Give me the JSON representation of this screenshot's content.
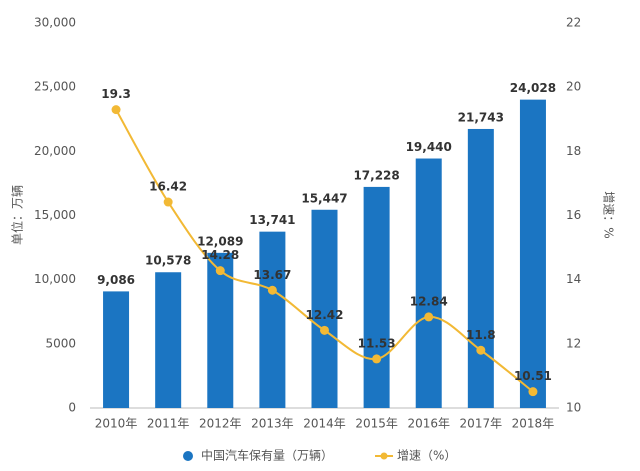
{
  "chart_data": {
    "type": "bar-line",
    "y_label": "单位：万辆",
    "y2_label": "增速：%",
    "categories": [
      "2010年",
      "2011年",
      "2012年",
      "2013年",
      "2014年",
      "2015年",
      "2016年",
      "2017年",
      "2018年"
    ],
    "series": [
      {
        "name": "中国汽车保有量（万辆）",
        "type": "bar",
        "color": "#1b75c2",
        "axis": "y",
        "values": [
          9086,
          10578,
          12089,
          13741,
          15447,
          17228,
          19440,
          21743,
          24028
        ],
        "value_labels": [
          "9,086",
          "10,578",
          "12,089",
          "13,741",
          "15,447",
          "17,228",
          "19,440",
          "21,743",
          "24,028"
        ]
      },
      {
        "name": "增速（%）",
        "type": "line",
        "color": "#f2b935",
        "axis": "y2",
        "values": [
          19.3,
          16.42,
          14.28,
          13.67,
          12.42,
          11.53,
          12.84,
          11.8,
          10.51
        ]
      }
    ],
    "ylim": [
      0,
      30000
    ],
    "yticks": [
      0,
      5000,
      {
        "value": 10000,
        "label": "10,000"
      },
      {
        "value": 15000,
        "label": "15,000"
      },
      {
        "value": 20000,
        "label": "20,000"
      },
      {
        "value": 25000,
        "label": "25,000"
      },
      {
        "value": 30000,
        "label": "30,000"
      }
    ],
    "y2lim": [
      10,
      22
    ],
    "y2ticks": [
      10,
      12,
      14,
      16,
      18,
      20,
      22
    ],
    "grid": false
  }
}
